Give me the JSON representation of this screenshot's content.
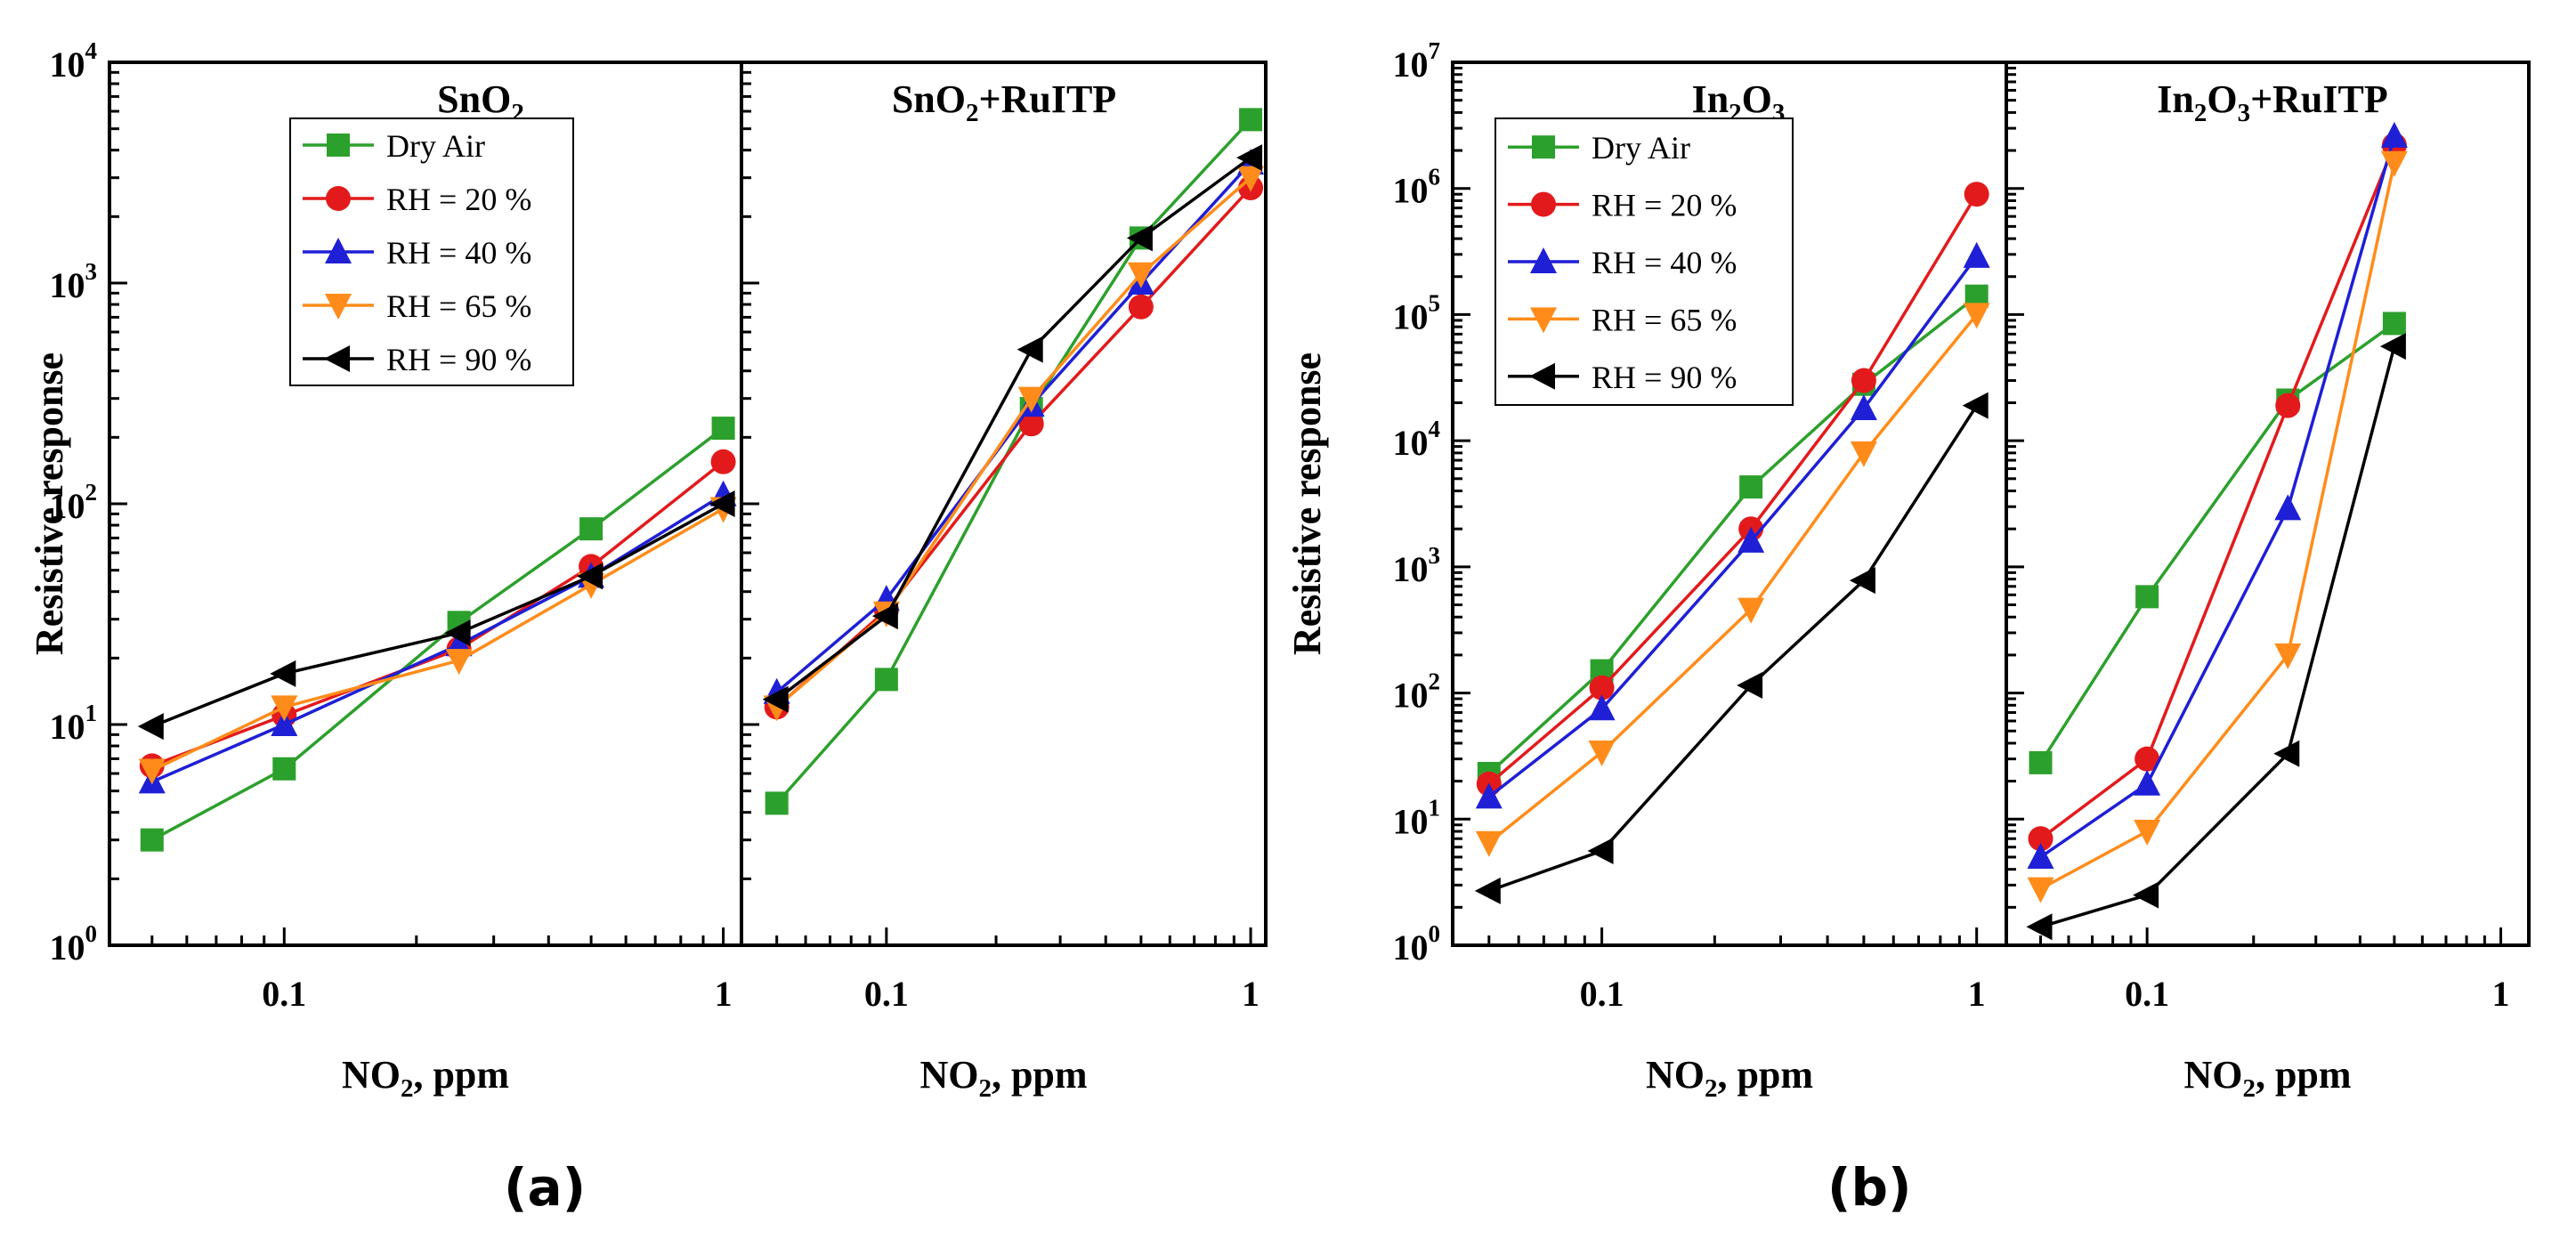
{
  "figure_labels": {
    "a": "(a)",
    "b": "(b)"
  },
  "series_styles": [
    {
      "name": "Dry Air",
      "color": "#2ca02c",
      "marker": "square"
    },
    {
      "name": "RH = 20 %",
      "color": "#e31a1c",
      "marker": "circle"
    },
    {
      "name": "RH = 40 %",
      "color": "#1f1fd6",
      "marker": "triangle-up"
    },
    {
      "name": "RH = 65 %",
      "color": "#ff8c1a",
      "marker": "triangle-down"
    },
    {
      "name": "RH = 90 %",
      "color": "#000000",
      "marker": "triangle-left"
    }
  ],
  "chart_data": [
    {
      "type": "line",
      "title": "SnO₂",
      "xlabel": "NO₂, ppm",
      "ylabel": "Resistive response",
      "xscale": "log",
      "yscale": "log",
      "xlim": [
        0.04,
        1.1
      ],
      "ylim": [
        1,
        10000
      ],
      "x_ticks": [
        {
          "value": 0.1,
          "label": "0.1"
        },
        {
          "value": 1,
          "label": "1"
        }
      ],
      "y_ticks": [
        {
          "value": 1,
          "base": "10",
          "exp": "0"
        },
        {
          "value": 10,
          "base": "10",
          "exp": "1"
        },
        {
          "value": 100,
          "base": "10",
          "exp": "2"
        },
        {
          "value": 1000,
          "base": "10",
          "exp": "3"
        },
        {
          "value": 10000,
          "base": "10",
          "exp": "4"
        }
      ],
      "legend": {
        "position": "top-left",
        "entries": [
          "Dry Air",
          "RH = 20 %",
          "RH = 40 %",
          "RH = 65 %",
          "RH = 90 %"
        ]
      },
      "x": [
        0.05,
        0.1,
        0.25,
        0.5,
        1
      ],
      "series": [
        {
          "name": "Dry Air",
          "values": [
            3,
            6.3,
            29,
            77,
            220
          ]
        },
        {
          "name": "RH = 20 %",
          "values": [
            6.5,
            11,
            22,
            52,
            155
          ]
        },
        {
          "name": "RH = 40 %",
          "values": [
            5.5,
            10,
            23,
            47,
            110
          ]
        },
        {
          "name": "RH = 65 %",
          "values": [
            6.2,
            12,
            19.5,
            43,
            95
          ]
        },
        {
          "name": "RH = 90 %",
          "values": [
            9.8,
            17,
            26,
            47,
            100
          ]
        }
      ]
    },
    {
      "type": "line",
      "title": "SnO₂+RuITP",
      "xlabel": "NO₂, ppm",
      "ylabel": "",
      "xscale": "log",
      "yscale": "log",
      "xlim": [
        0.04,
        1.1
      ],
      "ylim": [
        1,
        10000
      ],
      "x_ticks": [
        {
          "value": 0.1,
          "label": "0.1"
        },
        {
          "value": 1,
          "label": "1"
        }
      ],
      "y_ticks": [],
      "legend": null,
      "x": [
        0.05,
        0.1,
        0.25,
        0.5,
        1
      ],
      "series": [
        {
          "name": "Dry Air",
          "values": [
            4.4,
            16,
            270,
            1600,
            5500
          ]
        },
        {
          "name": "RH = 20 %",
          "values": [
            12,
            33,
            230,
            780,
            2700
          ]
        },
        {
          "name": "RH = 40 %",
          "values": [
            14,
            37,
            280,
            1000,
            3500
          ]
        },
        {
          "name": "RH = 65 %",
          "values": [
            12,
            32,
            300,
            1100,
            3000
          ]
        },
        {
          "name": "RH = 90 %",
          "values": [
            13,
            31,
            500,
            1600,
            3700
          ]
        }
      ]
    },
    {
      "type": "line",
      "title": "In₂O₃",
      "xlabel": "NO₂, ppm",
      "ylabel": "Resistive response",
      "xscale": "log",
      "yscale": "log",
      "xlim": [
        0.04,
        1.2
      ],
      "ylim": [
        1,
        10000000
      ],
      "x_ticks": [
        {
          "value": 0.1,
          "label": "0.1"
        },
        {
          "value": 1,
          "label": "1"
        }
      ],
      "y_ticks": [
        {
          "value": 1,
          "base": "10",
          "exp": "0"
        },
        {
          "value": 10,
          "base": "10",
          "exp": "1"
        },
        {
          "value": 100,
          "base": "10",
          "exp": "2"
        },
        {
          "value": 1000,
          "base": "10",
          "exp": "3"
        },
        {
          "value": 10000,
          "base": "10",
          "exp": "4"
        },
        {
          "value": 100000,
          "base": "10",
          "exp": "5"
        },
        {
          "value": 1000000,
          "base": "10",
          "exp": "6"
        },
        {
          "value": 10000000,
          "base": "10",
          "exp": "7"
        }
      ],
      "legend": {
        "position": "top-left",
        "entries": [
          "Dry Air",
          "RH = 20 %",
          "RH = 40 %",
          "RH = 65 %",
          "RH = 90 %"
        ]
      },
      "x": [
        0.05,
        0.1,
        0.25,
        0.5,
        1
      ],
      "series": [
        {
          "name": "Dry Air",
          "values": [
            23,
            150,
            4300,
            28000,
            140000
          ]
        },
        {
          "name": "RH = 20 %",
          "values": [
            19,
            110,
            2000,
            30000,
            900000
          ]
        },
        {
          "name": "RH = 40 %",
          "values": [
            15,
            75,
            1600,
            18000,
            290000
          ]
        },
        {
          "name": "RH = 65 %",
          "values": [
            6.5,
            34,
            460,
            8000,
            100000
          ]
        },
        {
          "name": "RH = 90 %",
          "values": [
            2.7,
            5.6,
            115,
            780,
            19000
          ]
        }
      ]
    },
    {
      "type": "line",
      "title": "In₂O₃+RuITP",
      "xlabel": "NO₂, ppm",
      "ylabel": "",
      "xscale": "log",
      "yscale": "log",
      "xlim": [
        0.04,
        1.2
      ],
      "ylim": [
        1,
        10000000
      ],
      "x_ticks": [
        {
          "value": 0.1,
          "label": "0.1"
        },
        {
          "value": 1,
          "label": "1"
        }
      ],
      "y_ticks": [],
      "legend": null,
      "x": [
        0.05,
        0.1,
        0.25,
        0.5
      ],
      "series": [
        {
          "name": "Dry Air",
          "values": [
            28,
            580,
            21000,
            85000
          ]
        },
        {
          "name": "RH = 20 %",
          "values": [
            7,
            30,
            19000,
            2200000
          ]
        },
        {
          "name": "RH = 40 %",
          "values": [
            5,
            19,
            2900,
            2600000
          ]
        },
        {
          "name": "RH = 65 %",
          "values": [
            2.8,
            8,
            200,
            1600000
          ]
        },
        {
          "name": "RH = 90 %",
          "values": [
            1.4,
            2.5,
            33,
            56000
          ]
        }
      ]
    }
  ]
}
